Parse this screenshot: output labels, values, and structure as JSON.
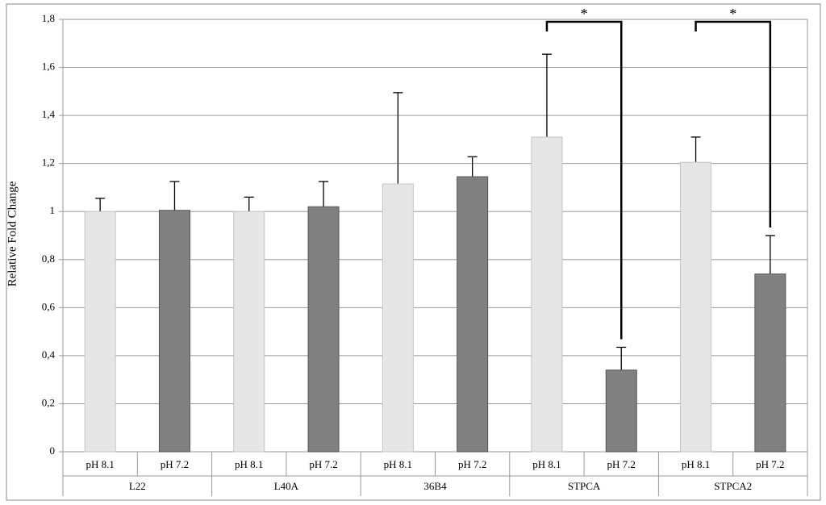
{
  "chart_data": {
    "type": "bar",
    "y_label": "Relative Fold Change",
    "categories": [
      "L22",
      "L40A",
      "36B4",
      "STPCA",
      "STPCA2"
    ],
    "series": [
      {
        "name": "pH 8.1",
        "color": "#e6e6e6",
        "values": [
          1.0,
          1.0,
          1.115,
          1.31,
          1.205
        ],
        "errors": [
          0.055,
          0.06,
          0.38,
          0.345,
          0.105
        ]
      },
      {
        "name": "pH 7.2",
        "color": "#808080",
        "values": [
          1.005,
          1.02,
          1.145,
          0.34,
          0.74
        ],
        "errors": [
          0.12,
          0.105,
          0.083,
          0.095,
          0.16
        ]
      }
    ],
    "ylim": [
      0,
      1.8
    ],
    "yticks": [
      0,
      {
        "value": 0.2,
        "label": "0,2"
      },
      {
        "value": 0.4,
        "label": "0,4"
      },
      {
        "value": 0.6,
        "label": "0,6"
      },
      {
        "value": 0.8,
        "label": "0,8"
      },
      1,
      {
        "value": 1.2,
        "label": "1,2"
      },
      {
        "value": 1.4,
        "label": "1,4"
      },
      {
        "value": 1.6,
        "label": "1,6"
      },
      {
        "value": 1.8,
        "label": "1,8"
      }
    ],
    "grid": true,
    "annotations": [
      {
        "text": "*",
        "category": "STPCA"
      },
      {
        "text": "*",
        "category": "STPCA2"
      }
    ]
  }
}
